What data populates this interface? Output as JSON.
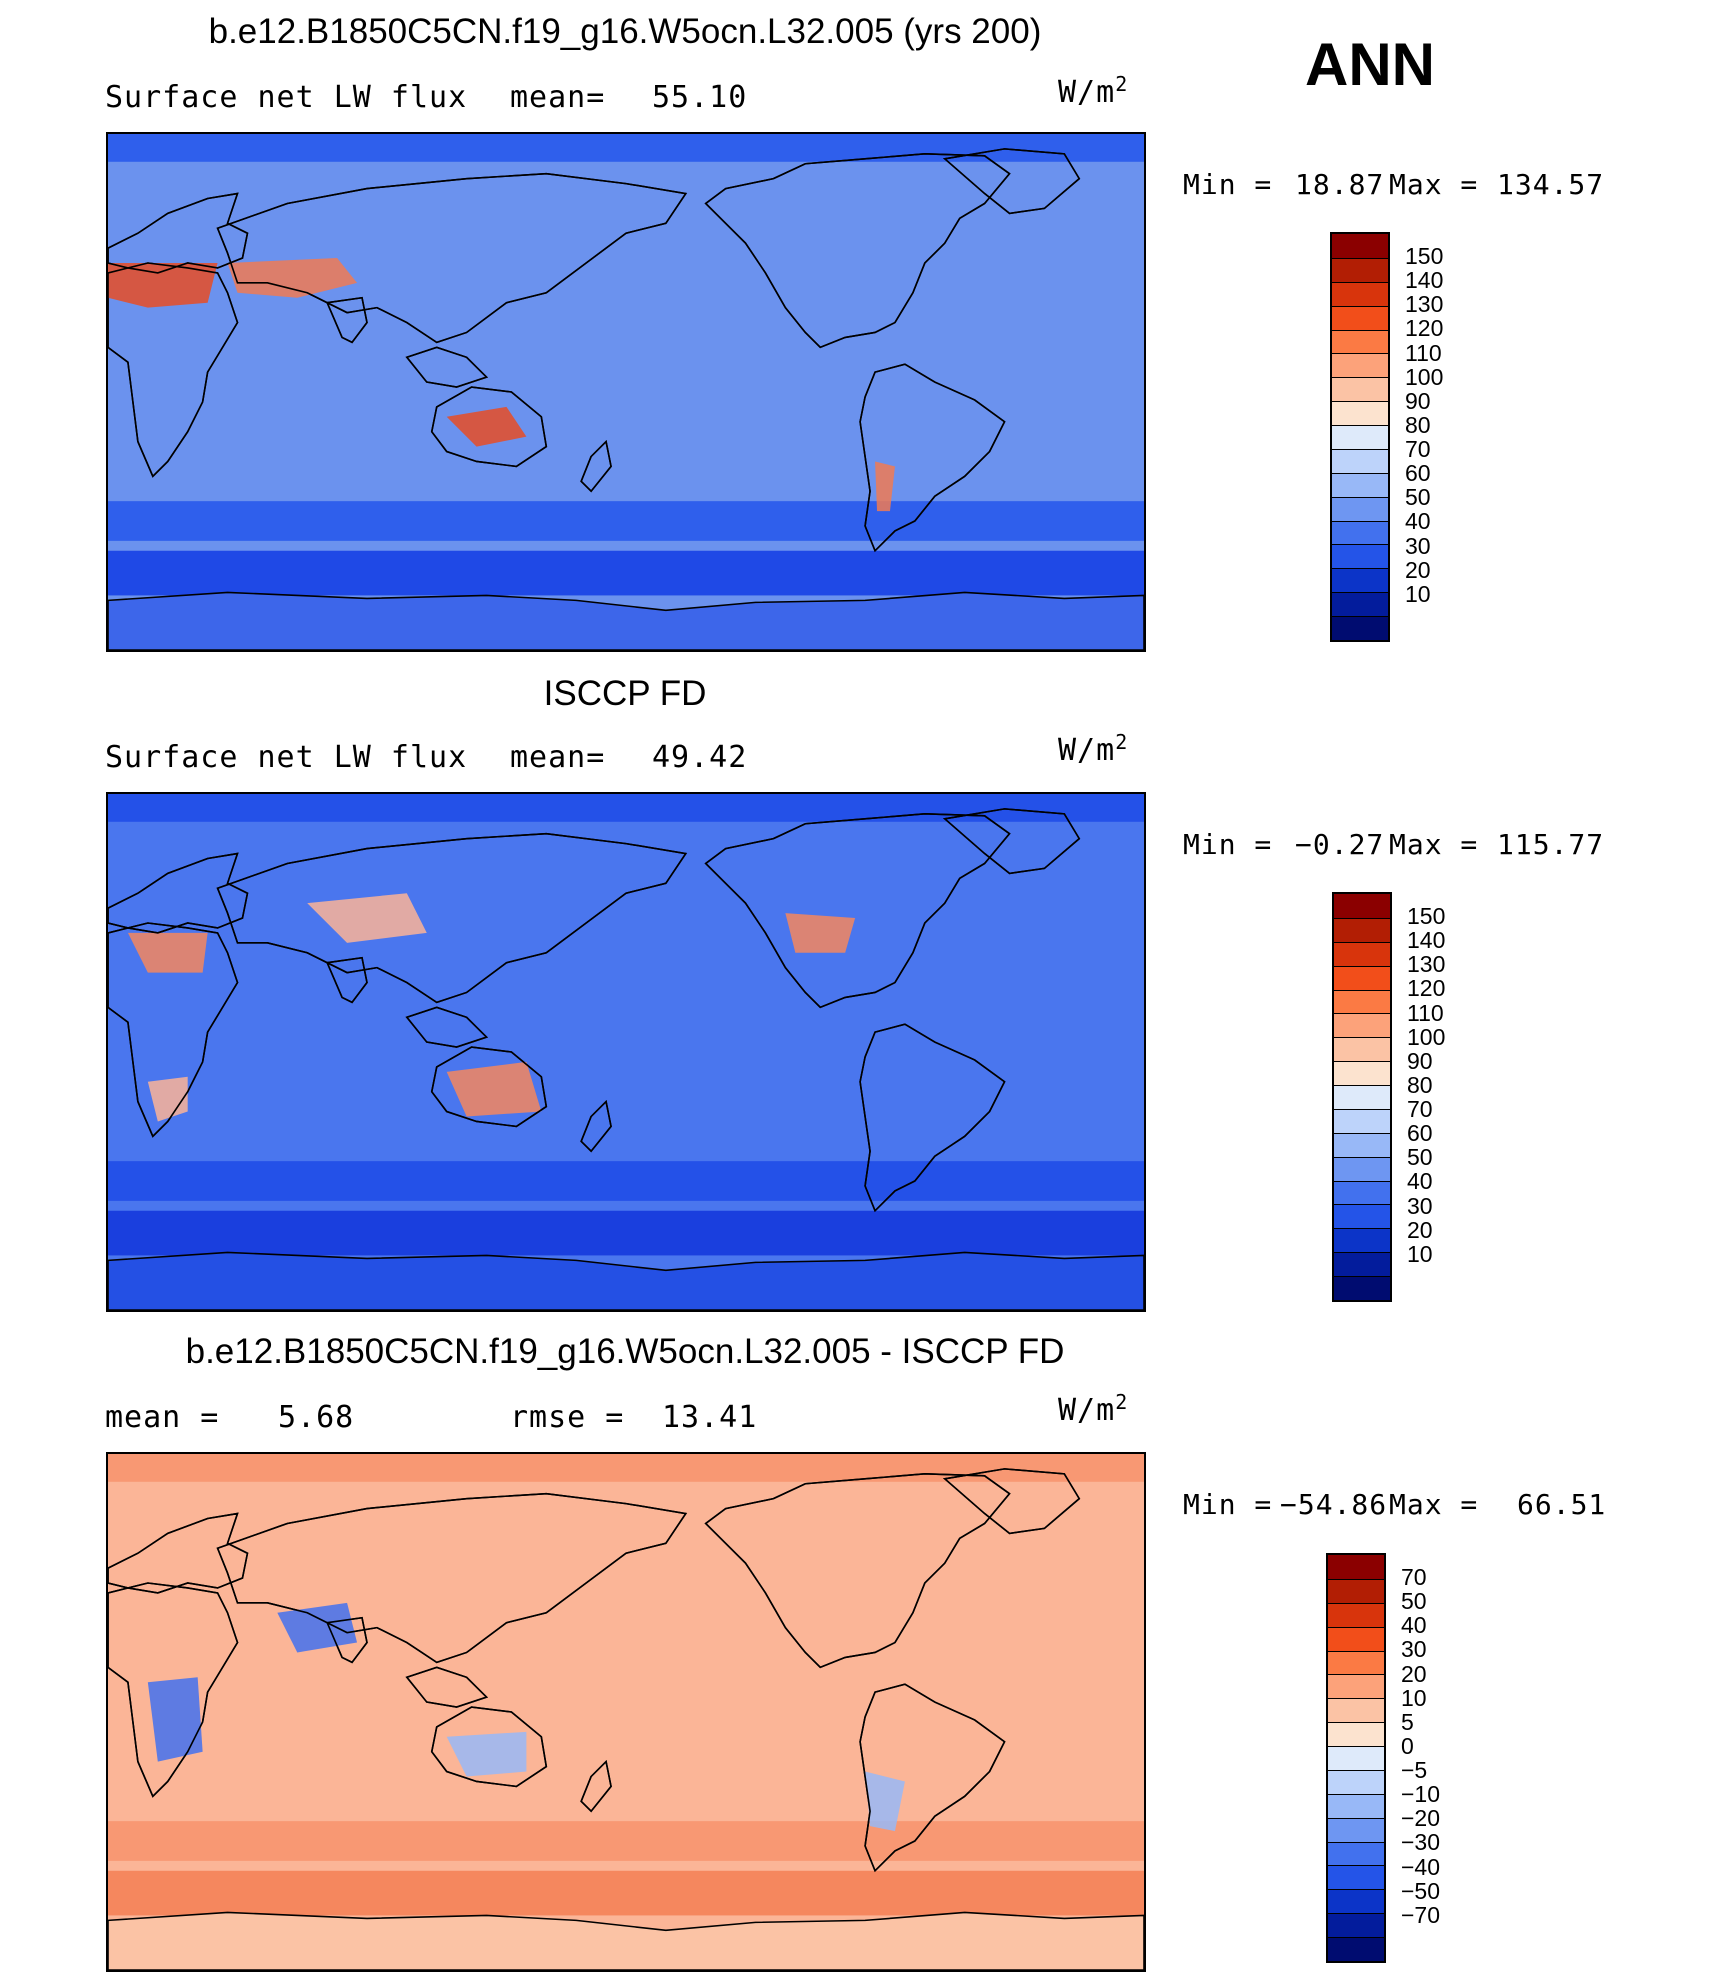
{
  "season": "ANN",
  "panels": [
    {
      "id": "model",
      "title": "b.e12.B1850C5CN.f19_g16.W5ocn.L32.005 (yrs 200)",
      "left_label": "Surface net LW flux",
      "center_label": "mean=",
      "center_value": "55.10",
      "units_base": "W/m",
      "units_sup": "2",
      "min_label": "Min =",
      "min_value": "18.87",
      "max_label": "Max =",
      "max_value": "134.57",
      "colorbar_labels": [
        "150",
        "140",
        "130",
        "120",
        "110",
        "100",
        "90",
        "80",
        "70",
        "60",
        "50",
        "40",
        "30",
        "20",
        "10"
      ],
      "colorbar_colors": [
        "#8b0000",
        "#b21e04",
        "#d8340c",
        "#f24e1a",
        "#fb7a44",
        "#fca27a",
        "#fbc3a5",
        "#fce3cf",
        "#deeafa",
        "#bdd3fa",
        "#98b8f7",
        "#6e96f2",
        "#4271ee",
        "#2454e8",
        "#0c34c8",
        "#031c9c",
        "#000c70"
      ],
      "region_colors": {
        "ocean": "#6b92ee",
        "band_mid": "#2f5fec",
        "band_south": "#1f49e6",
        "land_warm": "#f07a54",
        "land_hot": "#e84c24",
        "antarctica": "#3d66ea"
      }
    },
    {
      "id": "obs",
      "title": "ISCCP FD",
      "left_label": "Surface net LW flux",
      "center_label": "mean=",
      "center_value": "49.42",
      "units_base": "W/m",
      "units_sup": "2",
      "min_label": "Min =",
      "min_value": "−0.27",
      "max_label": "Max =",
      "max_value": "115.77",
      "colorbar_labels": [
        "150",
        "140",
        "130",
        "120",
        "110",
        "100",
        "90",
        "80",
        "70",
        "60",
        "50",
        "40",
        "30",
        "20",
        "10"
      ],
      "colorbar_colors": [
        "#8b0000",
        "#b21e04",
        "#d8340c",
        "#f24e1a",
        "#fb7a44",
        "#fca27a",
        "#fbc3a5",
        "#fce3cf",
        "#deeafa",
        "#bdd3fa",
        "#98b8f7",
        "#6e96f2",
        "#4271ee",
        "#2454e8",
        "#0c34c8",
        "#031c9c",
        "#000c70"
      ],
      "region_colors": {
        "ocean": "#4a76ee",
        "band_mid": "#2451e8",
        "band_south": "#1a3fde",
        "land_warm": "#fcb497",
        "land_hot": "#f5875e",
        "antarctica": "#2450e4"
      }
    },
    {
      "id": "diff",
      "title": "b.e12.B1850C5CN.f19_g16.W5ocn.L32.005 - ISCCP FD",
      "left_label": "mean =",
      "left_value": "5.68",
      "center_label": "rmse =",
      "center_value": "13.41",
      "units_base": "W/m",
      "units_sup": "2",
      "min_label": "Min =",
      "min_value": "−54.86",
      "max_label": "Max =",
      "max_value": "66.51",
      "colorbar_labels": [
        "70",
        "50",
        "40",
        "30",
        "20",
        "10",
        "5",
        "0",
        "−5",
        "−10",
        "−20",
        "−30",
        "−40",
        "−50",
        "−70"
      ],
      "colorbar_colors": [
        "#8b0000",
        "#b21e04",
        "#d8340c",
        "#f24e1a",
        "#fb7a44",
        "#fca27a",
        "#fbc3a5",
        "#fce3cf",
        "#deeafa",
        "#bdd3fa",
        "#98b8f7",
        "#6e96f2",
        "#4271ee",
        "#2454e8",
        "#0c34c8",
        "#031c9c",
        "#000c70"
      ],
      "region_colors": {
        "ocean": "#fbb597",
        "band_mid": "#f89873",
        "band_south": "#f5875e",
        "land_warm": "#98b8f7",
        "land_hot": "#4271ee",
        "antarctica": "#fbc3a5"
      }
    }
  ]
}
